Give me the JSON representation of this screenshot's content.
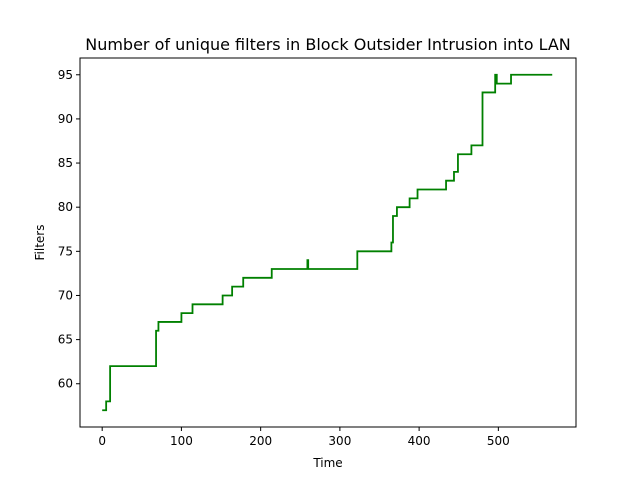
{
  "chart_data": {
    "type": "line",
    "title": "Number of unique filters in Block Outsider Intrusion into LAN",
    "xlabel": "Time",
    "ylabel": "Filters",
    "xlim": [
      -28,
      598
    ],
    "ylim": [
      55.1,
      96.9
    ],
    "xticks": [
      0,
      100,
      200,
      300,
      400,
      500
    ],
    "yticks": [
      60,
      65,
      70,
      75,
      80,
      85,
      90,
      95
    ],
    "grid": false,
    "legend": "none",
    "series": [
      {
        "color": "#008000",
        "points": [
          [
            0,
            57
          ],
          [
            5,
            57
          ],
          [
            5,
            58
          ],
          [
            10,
            58
          ],
          [
            10,
            62
          ],
          [
            68,
            62
          ],
          [
            68,
            66
          ],
          [
            71,
            66
          ],
          [
            71,
            67
          ],
          [
            100,
            67
          ],
          [
            100,
            68
          ],
          [
            114,
            68
          ],
          [
            114,
            69
          ],
          [
            152,
            69
          ],
          [
            152,
            70
          ],
          [
            164,
            70
          ],
          [
            164,
            71
          ],
          [
            178,
            71
          ],
          [
            178,
            72
          ],
          [
            214,
            72
          ],
          [
            214,
            73
          ],
          [
            259,
            73
          ],
          [
            259,
            74
          ],
          [
            260,
            74
          ],
          [
            260,
            73
          ],
          [
            322,
            73
          ],
          [
            322,
            75
          ],
          [
            365,
            75
          ],
          [
            365,
            76
          ],
          [
            367,
            76
          ],
          [
            367,
            79
          ],
          [
            372,
            79
          ],
          [
            372,
            80
          ],
          [
            388,
            80
          ],
          [
            388,
            81
          ],
          [
            398,
            81
          ],
          [
            398,
            82
          ],
          [
            434,
            82
          ],
          [
            434,
            83
          ],
          [
            444,
            83
          ],
          [
            444,
            84
          ],
          [
            449,
            84
          ],
          [
            449,
            86
          ],
          [
            466,
            86
          ],
          [
            466,
            87
          ],
          [
            480,
            87
          ],
          [
            480,
            93
          ],
          [
            496,
            93
          ],
          [
            496,
            95
          ],
          [
            498,
            95
          ],
          [
            498,
            94
          ],
          [
            516,
            94
          ],
          [
            516,
            95
          ],
          [
            568,
            95
          ]
        ]
      }
    ]
  }
}
